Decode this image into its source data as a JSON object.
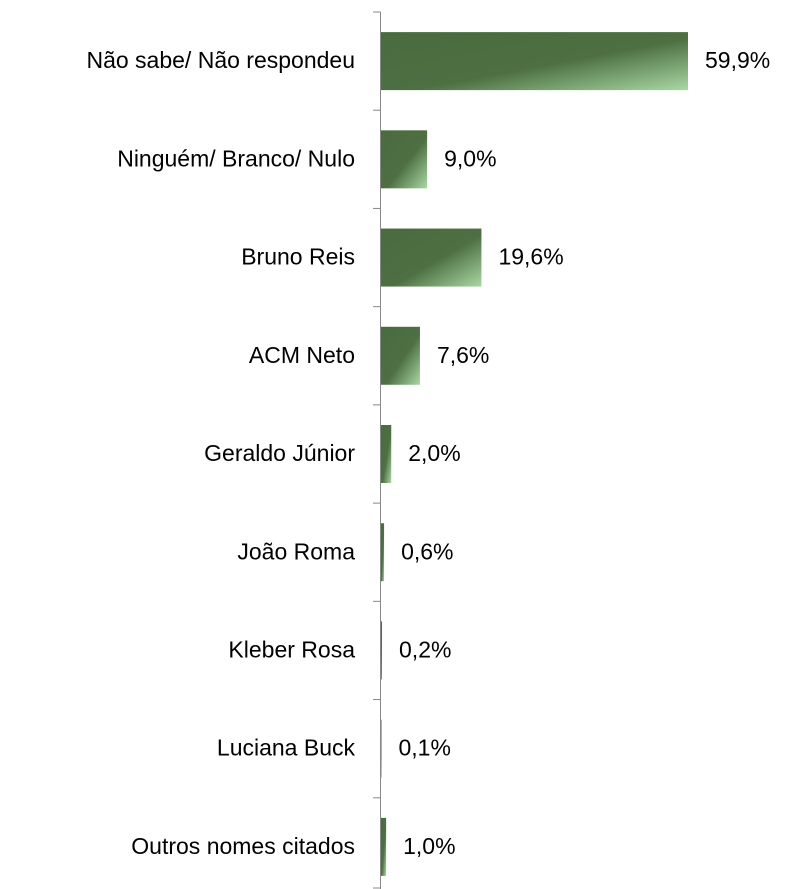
{
  "chart_data": {
    "type": "bar",
    "orientation": "horizontal",
    "categories": [
      "Não sabe/ Não respondeu",
      "Ninguém/ Branco/ Nulo",
      "Bruno Reis",
      "ACM Neto",
      "Geraldo Júnior",
      "João Roma",
      "Kleber Rosa",
      "Luciana Buck",
      "Outros nomes citados"
    ],
    "values": [
      59.9,
      9.0,
      19.6,
      7.6,
      2.0,
      0.6,
      0.2,
      0.1,
      1.0
    ],
    "value_labels": [
      "59,9%",
      "9,0%",
      "19,6%",
      "7,6%",
      "2,0%",
      "0,6%",
      "0,2%",
      "0,1%",
      "1,0%"
    ],
    "color": "#4a6b3f",
    "xlim": [
      0,
      60
    ]
  }
}
